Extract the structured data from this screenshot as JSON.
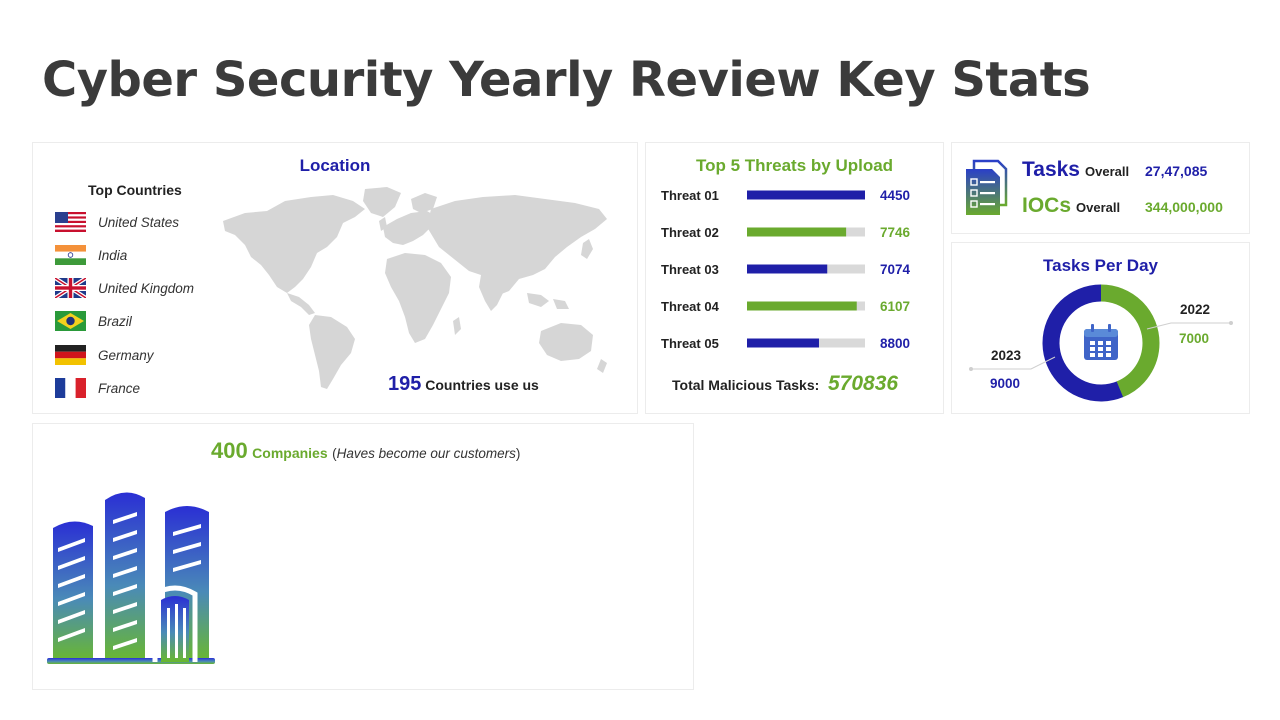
{
  "title": "Cyber Security Yearly Review Key Stats",
  "location": {
    "heading": "Location",
    "top_countries_label": "Top Countries",
    "countries": [
      {
        "name": "United States",
        "flag": "us-flag"
      },
      {
        "name": "India",
        "flag": "india-flag"
      },
      {
        "name": "United Kingdom",
        "flag": "uk-flag"
      },
      {
        "name": "Brazil",
        "flag": "brazil-flag"
      },
      {
        "name": "Germany",
        "flag": "germany-flag"
      },
      {
        "name": "France",
        "flag": "france-flag"
      }
    ],
    "countries_count": "195",
    "countries_label": "Countries use us"
  },
  "threats": {
    "heading": "Top 5 Threats by Upload",
    "total_label": "Total Malicious Tasks:",
    "total_value": "570836"
  },
  "tasks_overall": {
    "tasks_label": "Tasks",
    "tasks_suffix": "Overall",
    "tasks_value": "27,47,085",
    "iocs_label": "IOCs",
    "iocs_suffix": "Overall",
    "iocs_value": "344,000,000"
  },
  "tasks_per_day": {
    "heading": "Tasks Per Day"
  },
  "companies": {
    "count": "400",
    "label": "Companies",
    "note": "Haves become our customers"
  },
  "colors": {
    "blue": "#1f1fa8",
    "green": "#6aaa2e",
    "track": "#d9d9d9",
    "map": "#d6d6d6"
  },
  "chart_data": [
    {
      "type": "bar",
      "title": "Top 5 Threats by Upload",
      "categories": [
        "Threat 01",
        "Threat 02",
        "Threat 03",
        "Threat 04",
        "Threat 05"
      ],
      "values": [
        4450,
        7746,
        7074,
        6107,
        8800
      ],
      "fill_fraction": [
        1.0,
        0.84,
        0.68,
        0.93,
        0.61
      ],
      "bar_colors": [
        "#1f1fa8",
        "#6aaa2e",
        "#1f1fa8",
        "#6aaa2e",
        "#1f1fa8"
      ]
    },
    {
      "type": "pie",
      "title": "Tasks Per Day",
      "categories": [
        "2023",
        "2022"
      ],
      "values": [
        9000,
        7000
      ],
      "colors": [
        "#1f1fa8",
        "#6aaa2e"
      ]
    }
  ]
}
